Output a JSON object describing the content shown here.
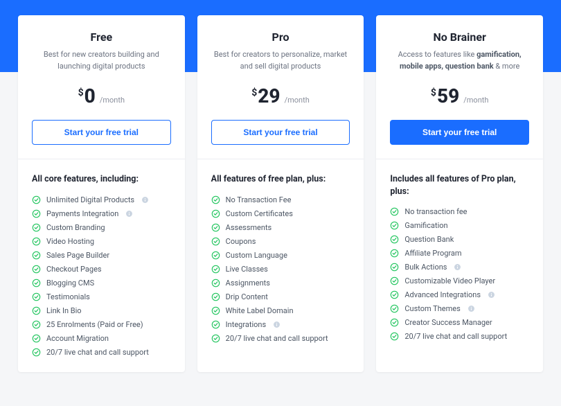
{
  "colors": {
    "band": "#1a6dff",
    "page_bg": "#f5f6f8",
    "card_bg": "#ffffff",
    "text_dark": "#1f2430",
    "text_muted": "#6b7280",
    "check_ring": "#22c55e",
    "info_fill": "#cbd5e1"
  },
  "plans": [
    {
      "name": "Free",
      "desc_plain": "Best for new creators building and launching digital products",
      "desc_html": "Best for new creators building and launching digital products",
      "price": "0",
      "period": "/month",
      "cta": "Start your free trial",
      "cta_variant": "outline",
      "features_heading": "All core features, including:",
      "features": [
        {
          "label": "Unlimited Digital Products",
          "info": true
        },
        {
          "label": "Payments Integration",
          "info": true
        },
        {
          "label": "Custom Branding",
          "info": false
        },
        {
          "label": "Video Hosting",
          "info": false
        },
        {
          "label": "Sales Page Builder",
          "info": false
        },
        {
          "label": "Checkout Pages",
          "info": false
        },
        {
          "label": "Blogging CMS",
          "info": false
        },
        {
          "label": "Testimonials",
          "info": false
        },
        {
          "label": "Link In Bio",
          "info": false
        },
        {
          "label": "25 Enrolments (Paid or Free)",
          "info": false
        },
        {
          "label": "Account Migration",
          "info": false
        },
        {
          "label": "20/7 live chat and call support",
          "info": false
        }
      ]
    },
    {
      "name": "Pro",
      "desc_plain": "Best for creators to personalize, market and sell digital products",
      "desc_html": "Best for creators to personalize, market and sell digital products",
      "price": "29",
      "period": "/month",
      "cta": "Start your free trial",
      "cta_variant": "outline",
      "features_heading": "All features of free plan, plus:",
      "features": [
        {
          "label": "No Transaction Fee",
          "info": false
        },
        {
          "label": "Custom Certificates",
          "info": false
        },
        {
          "label": "Assessments",
          "info": false
        },
        {
          "label": "Coupons",
          "info": false
        },
        {
          "label": "Custom Language",
          "info": false
        },
        {
          "label": "Live Classes",
          "info": false
        },
        {
          "label": "Assignments",
          "info": false
        },
        {
          "label": "Drip Content",
          "info": false
        },
        {
          "label": "White Label Domain",
          "info": false
        },
        {
          "label": "Integrations",
          "info": true
        },
        {
          "label": "20/7 live chat and call support",
          "info": false
        }
      ]
    },
    {
      "name": "No Brainer",
      "desc_plain": "Access to features like gamification, mobile apps, question bank & more",
      "desc_html": "Access to features like <b>gamification, mobile apps, question bank</b> & more",
      "price": "59",
      "period": "/month",
      "cta": "Start your free trial",
      "cta_variant": "primary",
      "features_heading": "Includes all features of Pro plan, plus:",
      "features": [
        {
          "label": "No transaction fee",
          "info": false
        },
        {
          "label": "Gamification",
          "info": false
        },
        {
          "label": "Question Bank",
          "info": false
        },
        {
          "label": "Affiliate Program",
          "info": false
        },
        {
          "label": "Bulk Actions",
          "info": true
        },
        {
          "label": "Customizable Video Player",
          "info": false
        },
        {
          "label": "Advanced Integrations",
          "info": true
        },
        {
          "label": "Custom Themes",
          "info": true
        },
        {
          "label": "Creator Success Manager",
          "info": false
        },
        {
          "label": "20/7 live chat and call support",
          "info": false
        }
      ]
    }
  ]
}
